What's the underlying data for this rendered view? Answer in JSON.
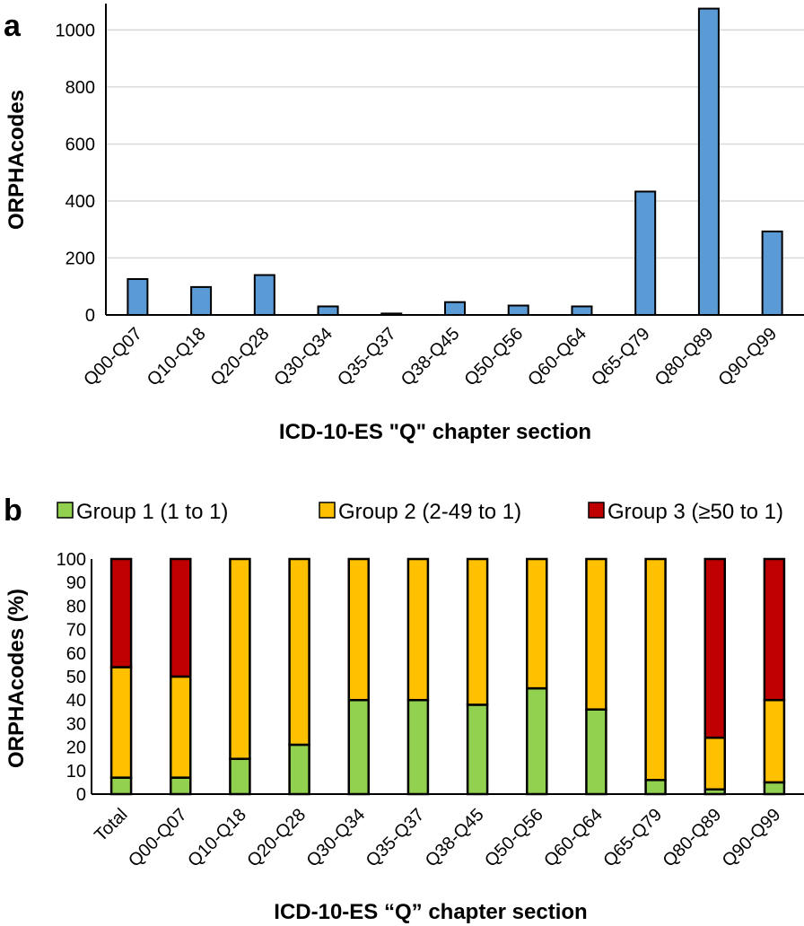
{
  "panel_a": {
    "letter": "a"
  },
  "panel_b": {
    "letter": "b"
  },
  "chart_data": [
    {
      "type": "bar",
      "title": "",
      "categories": [
        "Q00-Q07",
        "Q10-Q18",
        "Q20-Q28",
        "Q30-Q34",
        "Q35-Q37",
        "Q38-Q45",
        "Q50-Q56",
        "Q60-Q64",
        "Q65-Q79",
        "Q80-Q89",
        "Q90-Q99"
      ],
      "values": [
        126,
        98,
        140,
        30,
        5,
        45,
        33,
        30,
        433,
        1075,
        293
      ],
      "xlabel": "ICD-10-ES \"Q\" chapter section",
      "ylabel": "ORPHAcodes",
      "ylim": [
        0,
        1080
      ],
      "yticks": [
        0,
        200,
        400,
        600,
        800,
        1000
      ],
      "grid": true,
      "color": "#5b9bd5"
    },
    {
      "type": "bar",
      "stacked": true,
      "title": "",
      "categories": [
        "Total",
        "Q00-Q07",
        "Q10-Q18",
        "Q20-Q28",
        "Q30-Q34",
        "Q35-Q37",
        "Q38-Q45",
        "Q50-Q56",
        "Q60-Q64",
        "Q65-Q79",
        "Q80-Q89",
        "Q90-Q99"
      ],
      "series": [
        {
          "name": "Group 1 (1 to 1)",
          "color": "#92d050",
          "values": [
            7,
            7,
            15,
            21,
            40,
            40,
            38,
            45,
            36,
            6,
            2,
            5
          ]
        },
        {
          "name": "Group 2 (2-49 to 1)",
          "color": "#ffc000",
          "values": [
            47,
            43,
            85,
            79,
            60,
            60,
            62,
            55,
            64,
            94,
            22,
            35
          ]
        },
        {
          "name": "Group 3 (≥50 to 1)",
          "color": "#c00000",
          "values": [
            46,
            50,
            0,
            0,
            0,
            0,
            0,
            0,
            0,
            0,
            76,
            60
          ]
        }
      ],
      "xlabel": "ICD-10-ES “Q” chapter section",
      "ylabel": "ORPHAcodes (%)",
      "ylim": [
        0,
        100
      ],
      "yticks": [
        0,
        10,
        20,
        30,
        40,
        50,
        60,
        70,
        80,
        90,
        100
      ],
      "legend": "top",
      "grid": false
    }
  ]
}
